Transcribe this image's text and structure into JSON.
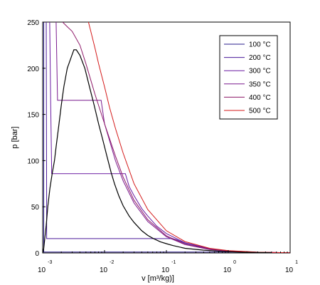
{
  "chart_data": {
    "type": "line",
    "xlabel": "v [m³/kg)]",
    "ylabel": "p [bar]",
    "xscale": "log",
    "xlim": [
      0.001,
      10
    ],
    "ylim": [
      0,
      250
    ],
    "x_ticks": [
      {
        "base": "10",
        "exp": "-3"
      },
      {
        "base": "10",
        "exp": "-2"
      },
      {
        "base": "10",
        "exp": "-1"
      },
      {
        "base": "10",
        "exp": "0"
      },
      {
        "base": "10",
        "exp": "1"
      }
    ],
    "y_ticks": [
      "0",
      "50",
      "100",
      "150",
      "200",
      "250"
    ],
    "grid": false,
    "legend_position": "top-right",
    "saturation_dome": {
      "color": "#000000",
      "v": [
        0.00101,
        0.00104,
        0.00108,
        0.00114,
        0.00121,
        0.00131,
        0.00142,
        0.00155,
        0.00165,
        0.0018,
        0.002,
        0.0022,
        0.0025,
        0.003,
        0.0032,
        0.0035,
        0.004,
        0.0048,
        0.0057,
        0.0068,
        0.008,
        0.0094,
        0.011,
        0.0128,
        0.0145,
        0.017,
        0.02,
        0.025,
        0.03,
        0.04,
        0.05,
        0.06,
        0.08,
        0.1,
        0.127,
        0.2,
        0.4,
        0.8,
        1.5,
        3,
        5
      ],
      "p": [
        0.5,
        5,
        15,
        30,
        50,
        70,
        85,
        100,
        115,
        135,
        160,
        180,
        200,
        215,
        220,
        220,
        214,
        200,
        180,
        160,
        140,
        122,
        104,
        87,
        75,
        62,
        51,
        40,
        33,
        24,
        19,
        16,
        12,
        10,
        8,
        5,
        3,
        1.7,
        0.9,
        0.5,
        0.3
      ]
    },
    "series": [
      {
        "name": "100 °C",
        "color": "#2a1c8c",
        "v": [
          0.00104,
          0.00104,
          0.00104,
          1.673,
          2,
          3,
          5,
          10
        ],
        "p": [
          250,
          100,
          1.01,
          1.01,
          0.86,
          0.57,
          0.34,
          0.17
        ]
      },
      {
        "name": "200 °C",
        "color": "#4a1a9a",
        "v": [
          0.00114,
          0.00116,
          0.00116,
          0.1272,
          0.15,
          0.2,
          0.5,
          1,
          3,
          10
        ],
        "p": [
          250,
          50,
          15.5,
          15.5,
          14,
          10.5,
          4.4,
          2.2,
          0.73,
          0.22
        ]
      },
      {
        "name": "300 °C",
        "color": "#6a1aa2",
        "v": [
          0.0013,
          0.00135,
          0.0014,
          0.0217,
          0.025,
          0.03,
          0.04,
          0.05,
          0.07,
          0.1,
          0.2,
          0.5,
          1,
          3,
          10
        ],
        "p": [
          250,
          160,
          85.9,
          85.9,
          72,
          62,
          48,
          40,
          29,
          21,
          11,
          4.6,
          2.3,
          0.77,
          0.23
        ]
      },
      {
        "name": "350 °C",
        "color": "#7a1a8e",
        "v": [
          0.00165,
          0.00174,
          0.0088,
          0.01,
          0.012,
          0.015,
          0.02,
          0.03,
          0.05,
          0.1,
          0.2,
          0.5,
          1,
          3,
          10
        ],
        "p": [
          250,
          165.3,
          165.3,
          140,
          122,
          100,
          78,
          54,
          34,
          17.5,
          9,
          3.7,
          1.9,
          0.63,
          0.19
        ]
      },
      {
        "name": "400 °C",
        "color": "#8e1868",
        "v": [
          0.0021,
          0.0025,
          0.003,
          0.004,
          0.005,
          0.007,
          0.01,
          0.015,
          0.02,
          0.03,
          0.05,
          0.1,
          0.2,
          0.5,
          1,
          3,
          10
        ],
        "p": [
          250,
          245,
          240,
          225,
          205,
          172,
          140,
          105,
          82,
          57,
          36,
          18.5,
          9.5,
          3.9,
          2,
          0.66,
          0.2
        ]
      },
      {
        "name": "500 °C",
        "color": "#d41a1a",
        "v": [
          0.0055,
          0.006,
          0.007,
          0.008,
          0.01,
          0.012,
          0.015,
          0.02,
          0.03,
          0.05,
          0.1,
          0.2,
          0.5,
          1,
          3,
          10
        ],
        "p": [
          250,
          240,
          222,
          205,
          180,
          158,
          135,
          108,
          75,
          47,
          24,
          12.3,
          5,
          2.5,
          0.83,
          0.25
        ]
      }
    ]
  }
}
